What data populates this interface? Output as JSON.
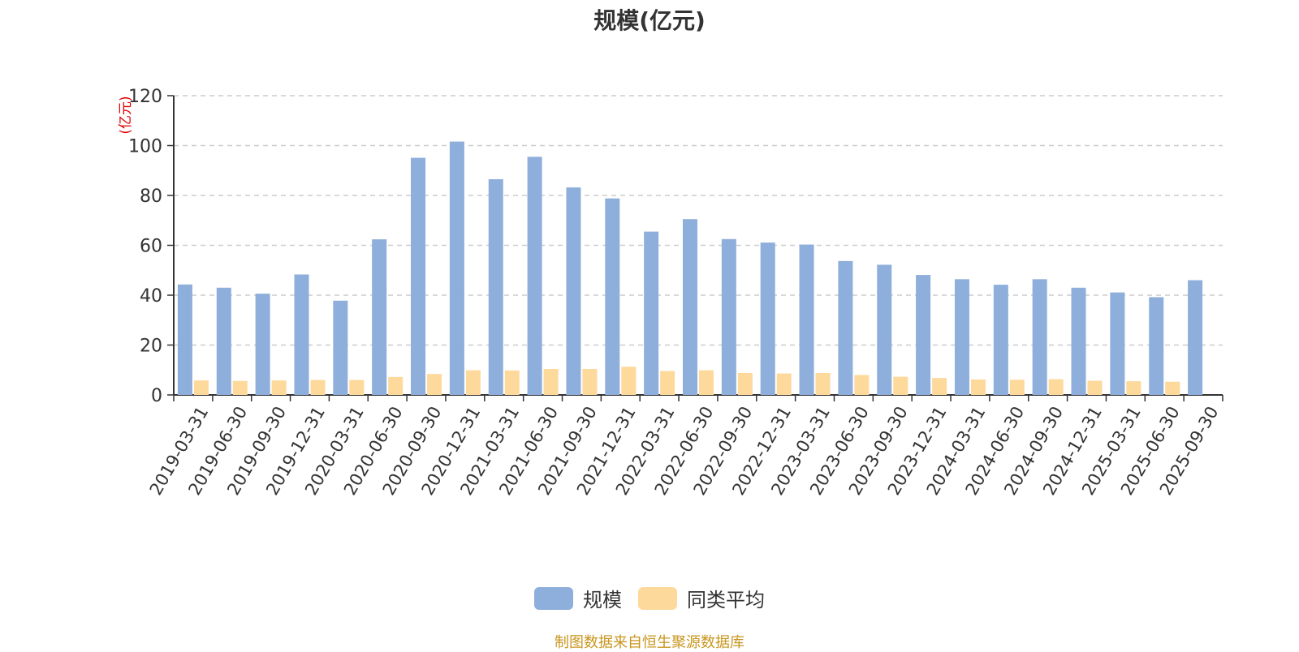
{
  "colors": {
    "series_main": "#8eaedb",
    "series_avg": "#fdd99b",
    "axis": "#333333",
    "grid": "#cccccc",
    "unit_label": "#e00000",
    "source_note": "#c8961e"
  },
  "source_note": "制图数据来自恒生聚源数据库",
  "chart_data": {
    "type": "bar",
    "title": "规模(亿元)",
    "ylabel": "(亿元)",
    "xlabel": "",
    "ylim": [
      0,
      120
    ],
    "yticks": [
      0,
      20,
      40,
      60,
      80,
      100,
      120
    ],
    "grid": true,
    "legend_position": "bottom-center",
    "categories": [
      "2019-03-31",
      "2019-06-30",
      "2019-09-30",
      "2019-12-31",
      "2020-03-31",
      "2020-06-30",
      "2020-09-30",
      "2020-12-31",
      "2021-03-31",
      "2021-06-30",
      "2021-09-30",
      "2021-12-31",
      "2022-03-31",
      "2022-06-30",
      "2022-09-30",
      "2022-12-31",
      "2023-03-31",
      "2023-06-30",
      "2023-09-30",
      "2023-12-31",
      "2024-03-31",
      "2024-06-30",
      "2024-09-30",
      "2024-12-31",
      "2025-03-31",
      "2025-06-30",
      "2025-09-30"
    ],
    "series": [
      {
        "name": "规模",
        "values": [
          44.3,
          43.0,
          40.6,
          48.3,
          37.8,
          62.4,
          95.1,
          101.6,
          86.5,
          95.5,
          83.2,
          78.8,
          65.5,
          70.5,
          62.5,
          61.1,
          60.3,
          53.7,
          52.2,
          48.1,
          46.4,
          44.2,
          46.4,
          43.0,
          41.1,
          39.2,
          46.0
        ]
      },
      {
        "name": "同类平均",
        "values": [
          5.8,
          5.6,
          5.8,
          6.0,
          6.0,
          7.2,
          8.4,
          9.9,
          9.8,
          10.4,
          10.4,
          11.3,
          9.6,
          9.9,
          8.8,
          8.6,
          8.8,
          8.0,
          7.3,
          6.8,
          6.2,
          6.1,
          6.3,
          5.7,
          5.5,
          5.3,
          0
        ]
      }
    ]
  }
}
